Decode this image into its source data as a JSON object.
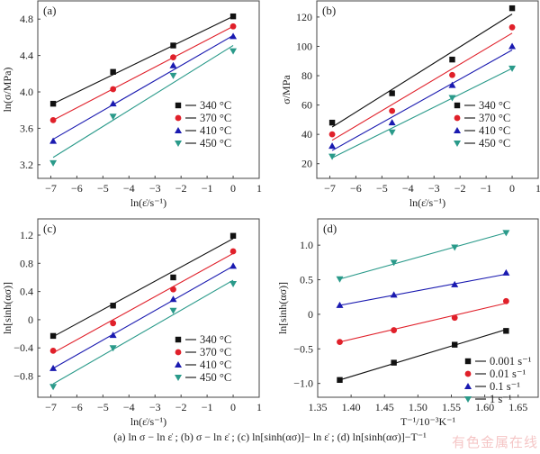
{
  "caption": "(a)  ln σ − ln ε̇ ;  (b) σ − ln ε̇ ;  (c)  ln[sinh(ασ)]− ln ε̇ ; (d) ln[sinh(ασ)]−T⁻¹",
  "watermark": "有色金属在线",
  "colors": {
    "black": "#111111",
    "red": "#e0202a",
    "blue": "#1a1ab0",
    "teal": "#2a9a8a"
  },
  "chart_data": [
    {
      "id": "a",
      "type": "scatter",
      "panel_label": "(a)",
      "xlabel": "ln(ε̇/s⁻¹)",
      "ylabel": "ln(σ/MPa)",
      "xlim": [
        -7.5,
        1
      ],
      "ylim": [
        3.05,
        5.0
      ],
      "xticks": [
        -7,
        -6,
        -5,
        -4,
        -3,
        -2,
        -1,
        0,
        1
      ],
      "yticks": [
        3.2,
        3.6,
        4.0,
        4.4,
        4.8
      ],
      "ytick_labels": [
        "3.2",
        "3.6",
        "4.0",
        "4.4",
        "4.8"
      ],
      "legend_position": "center-right",
      "x": [
        -6.91,
        -4.61,
        -2.3,
        0
      ],
      "series": [
        {
          "name": "340 °C",
          "marker": "square",
          "color": "#111111",
          "values": [
            3.87,
            4.22,
            4.51,
            4.83
          ],
          "fit": [
            3.87,
            4.83
          ]
        },
        {
          "name": "370 °C",
          "marker": "circle",
          "color": "#e0202a",
          "values": [
            3.69,
            4.03,
            4.38,
            4.72
          ],
          "fit": [
            3.69,
            4.72
          ]
        },
        {
          "name": "410 °C",
          "marker": "triangle-up",
          "color": "#1a1ab0",
          "values": [
            3.46,
            3.87,
            4.29,
            4.61
          ],
          "fit": [
            3.48,
            4.62
          ]
        },
        {
          "name": "450 °C",
          "marker": "triangle-down",
          "color": "#2a9a8a",
          "values": [
            3.22,
            3.73,
            4.18,
            4.45
          ],
          "fit": [
            3.28,
            4.51
          ]
        }
      ]
    },
    {
      "id": "b",
      "type": "scatter",
      "panel_label": "(b)",
      "xlabel": "ln(ε̇/s⁻¹)",
      "ylabel": "σ/MPa",
      "xlim": [
        -7.5,
        1
      ],
      "ylim": [
        10,
        131
      ],
      "xticks": [
        -7,
        -6,
        -5,
        -4,
        -3,
        -2,
        -1,
        0,
        1
      ],
      "yticks": [
        20,
        40,
        60,
        80,
        100,
        120
      ],
      "ytick_labels": [
        "20",
        "40",
        "60",
        "80",
        "100",
        "120"
      ],
      "legend_position": "center-right",
      "x": [
        -6.91,
        -4.61,
        -2.3,
        0
      ],
      "series": [
        {
          "name": "340 °C",
          "marker": "square",
          "color": "#111111",
          "values": [
            48,
            68,
            91,
            126
          ],
          "fit": [
            45,
            122
          ]
        },
        {
          "name": "370 °C",
          "marker": "circle",
          "color": "#e0202a",
          "values": [
            40,
            56,
            80.5,
            113
          ],
          "fit": [
            36,
            109
          ]
        },
        {
          "name": "410 °C",
          "marker": "triangle-up",
          "color": "#1a1ab0",
          "values": [
            32,
            48,
            73.5,
            100
          ],
          "fit": [
            29,
            97.5
          ]
        },
        {
          "name": "450 °C",
          "marker": "triangle-down",
          "color": "#2a9a8a",
          "values": [
            25,
            41.5,
            65,
            85
          ],
          "fit": [
            24,
            85
          ]
        }
      ]
    },
    {
      "id": "c",
      "type": "scatter",
      "panel_label": "(c)",
      "xlabel": "ln(ε̇/s⁻¹)",
      "ylabel": "ln[sinh(ασ)]",
      "xlim": [
        -7.5,
        1
      ],
      "ylim": [
        -1.1,
        1.43
      ],
      "xticks": [
        -7,
        -6,
        -5,
        -4,
        -3,
        -2,
        -1,
        0,
        1
      ],
      "yticks": [
        -0.8,
        -0.4,
        0,
        0.4,
        0.8,
        1.2
      ],
      "ytick_labels": [
        "-0.8",
        "-0.4",
        "0",
        "0.4",
        "0.8",
        "1.2"
      ],
      "legend_position": "bottom-right",
      "x": [
        -6.91,
        -4.61,
        -2.3,
        0
      ],
      "series": [
        {
          "name": "340 °C",
          "marker": "square",
          "color": "#111111",
          "values": [
            -0.23,
            0.2,
            0.6,
            1.19
          ],
          "fit": [
            -0.24,
            1.15
          ]
        },
        {
          "name": "370 °C",
          "marker": "circle",
          "color": "#e0202a",
          "values": [
            -0.44,
            -0.05,
            0.43,
            0.97
          ],
          "fit": [
            -0.47,
            0.94
          ]
        },
        {
          "name": "410 °C",
          "marker": "triangle-up",
          "color": "#1a1ab0",
          "values": [
            -0.69,
            -0.22,
            0.29,
            0.76
          ],
          "fit": [
            -0.69,
            0.76
          ]
        },
        {
          "name": "450 °C",
          "marker": "triangle-down",
          "color": "#2a9a8a",
          "values": [
            -0.95,
            -0.4,
            0.13,
            0.51
          ],
          "fit": [
            -0.91,
            0.56
          ]
        }
      ]
    },
    {
      "id": "d",
      "type": "scatter",
      "panel_label": "(d)",
      "xlabel": "T⁻¹/10⁻³K⁻¹",
      "ylabel": "ln[sinh(ασ)]",
      "xlim": [
        1.35,
        1.68
      ],
      "ylim": [
        -1.2,
        1.38
      ],
      "xticks": [
        1.35,
        1.4,
        1.45,
        1.5,
        1.55,
        1.6,
        1.65
      ],
      "xtick_labels": [
        "1.35",
        "1.40",
        "1.45",
        "1.50",
        "1.55",
        "1.60",
        "1.65"
      ],
      "yticks": [
        -1.0,
        -0.5,
        0,
        0.5,
        1.0
      ],
      "ytick_labels": [
        "-1.0",
        "-0.5",
        "0",
        "0.5",
        "1.0"
      ],
      "legend_position": "bottom-right",
      "x": [
        1.383,
        1.464,
        1.555,
        1.632
      ],
      "series": [
        {
          "name": "0.001 s⁻¹",
          "marker": "square",
          "color": "#111111",
          "values": [
            -0.95,
            -0.7,
            -0.44,
            -0.24
          ],
          "fit": [
            -0.95,
            -0.22
          ]
        },
        {
          "name": "0.01 s⁻¹",
          "marker": "circle",
          "color": "#e0202a",
          "values": [
            -0.4,
            -0.23,
            -0.05,
            0.19
          ],
          "fit": [
            -0.4,
            0.16
          ]
        },
        {
          "name": "0.1 s⁻¹",
          "marker": "triangle-up",
          "color": "#1a1ab0",
          "values": [
            0.13,
            0.28,
            0.43,
            0.6
          ],
          "fit": [
            0.13,
            0.58
          ]
        },
        {
          "name": "1 s⁻¹",
          "marker": "triangle-down",
          "color": "#2a9a8a",
          "values": [
            0.51,
            0.75,
            0.97,
            1.18
          ],
          "fit": [
            0.51,
            1.18
          ]
        }
      ]
    }
  ]
}
